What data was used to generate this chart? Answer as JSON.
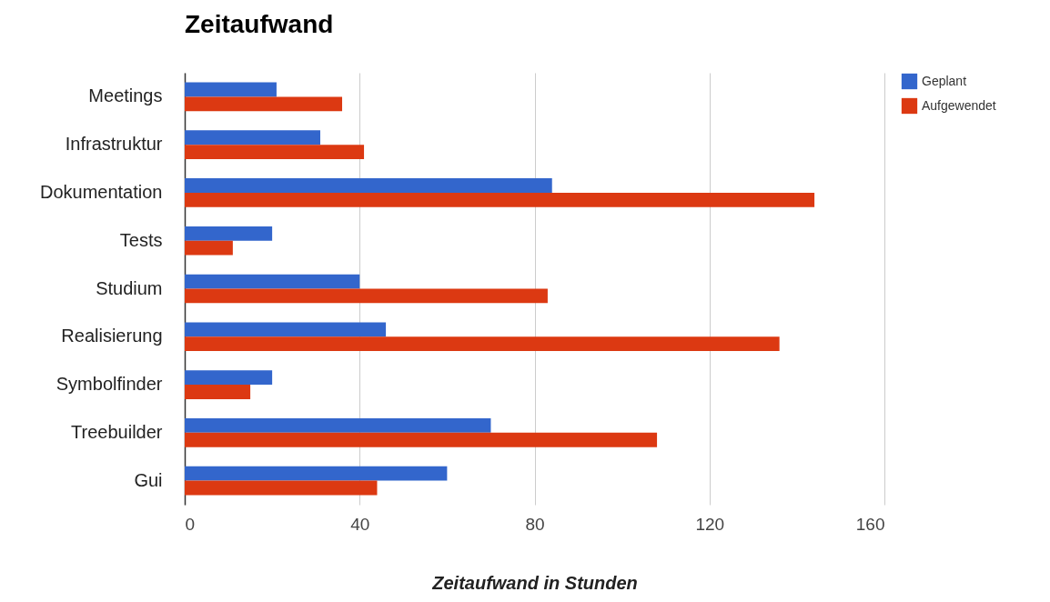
{
  "chart_data": {
    "type": "bar",
    "orientation": "horizontal",
    "title": "Zeitaufwand",
    "xlabel": "Zeitaufwand in Stunden",
    "categories": [
      "Meetings",
      "Infrastruktur",
      "Dokumentation",
      "Tests",
      "Studium",
      "Realisierung",
      "Symbolfinder",
      "Treebuilder",
      "Gui"
    ],
    "series": [
      {
        "name": "Geplant",
        "color": "#3366cc",
        "values": [
          21,
          31,
          84,
          20,
          40,
          46,
          20,
          70,
          60
        ]
      },
      {
        "name": "Aufgewendet",
        "color": "#dc3912",
        "values": [
          36,
          41,
          144,
          11,
          83,
          136,
          15,
          108,
          44
        ]
      }
    ],
    "xlim": [
      0,
      160
    ],
    "xticks": [
      0,
      40,
      80,
      120,
      160
    ],
    "grid": "x",
    "legend": "top right"
  }
}
